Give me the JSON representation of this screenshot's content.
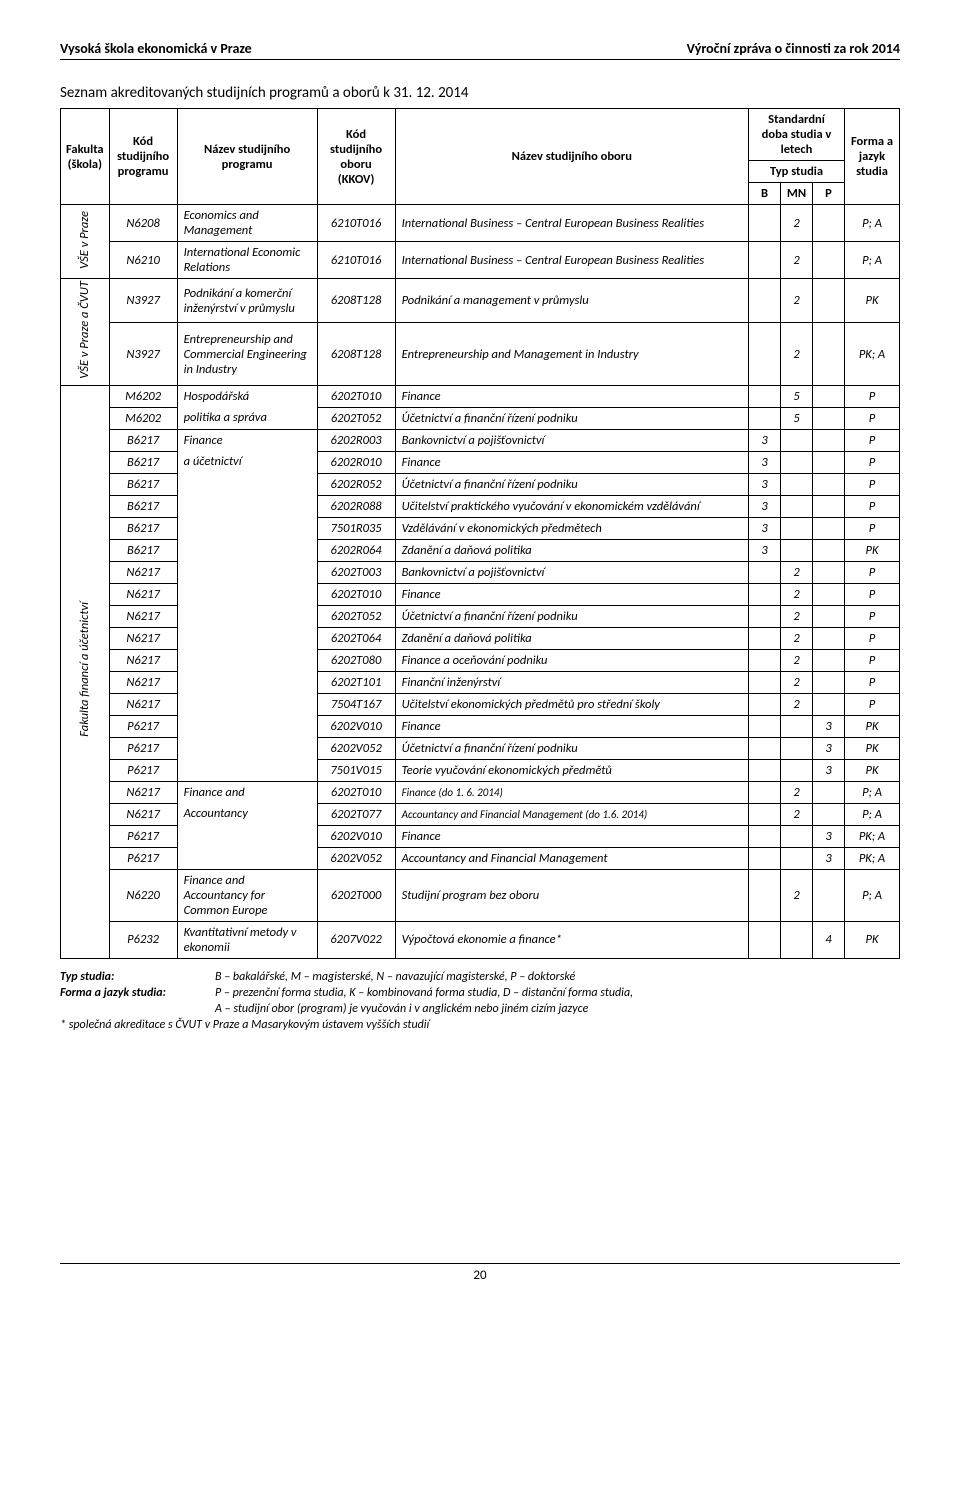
{
  "header": {
    "left": "Vysoká škola ekonomická v Praze",
    "right": "Výroční zpráva o činnosti za rok 2014"
  },
  "title": "Seznam akreditovaných studijních programů a oborů k 31. 12. 2014",
  "columns": {
    "fakulta": "Fakulta (škola)",
    "kod_prog": "Kód studijního programu",
    "nazev_prog": "Název studijního programu",
    "kkov": "Kód studijního oboru (KKOV)",
    "nazev_obor": "Název studijního oboru",
    "std_doba": "Standardní doba studia v letech",
    "typ": "Typ studia",
    "b": "B",
    "mn": "MN",
    "p": "P",
    "forma": "Forma a jazyk studia"
  },
  "groups": {
    "g1": "VŠE v Praze",
    "g2": "VŠE v Praze a ČVUT",
    "g3": "Fakulta financí a účetnictví"
  },
  "rows": {
    "r1": {
      "code": "N6208",
      "prog": "Economics and Management",
      "kkov": "6210T016",
      "name": "International Business – Central European Business Realities",
      "b": "",
      "mn": "2",
      "p": "",
      "form": "P; A"
    },
    "r2": {
      "code": "N6210",
      "prog": "International Economic Relations",
      "kkov": "6210T016",
      "name": "International Business – Central European Business Realities",
      "b": "",
      "mn": "2",
      "p": "",
      "form": "P; A"
    },
    "r3": {
      "code": "N3927",
      "prog": "Podnikání a komerční inženýrství v průmyslu",
      "kkov": "6208T128",
      "name": "Podnikání a management v průmyslu",
      "b": "",
      "mn": "2",
      "p": "",
      "form": "PK"
    },
    "r4": {
      "code": "N3927",
      "prog": "Entrepreneurship and Commercial Engineering in Industry",
      "kkov": "6208T128",
      "name": "Entrepreneurship and Management in Industry",
      "b": "",
      "mn": "2",
      "p": "",
      "form": "PK; A"
    },
    "r5": {
      "code": "M6202",
      "prog": "Hospodářská",
      "kkov": "6202T010",
      "name": "Finance",
      "b": "",
      "mn": "5",
      "p": "",
      "form": "P"
    },
    "r6": {
      "code": "M6202",
      "prog": "politika a správa",
      "kkov": "6202T052",
      "name": "Účetnictví a finanční řízení podniku",
      "b": "",
      "mn": "5",
      "p": "",
      "form": "P"
    },
    "r7": {
      "code": "B6217",
      "prog": "Finance",
      "kkov": "6202R003",
      "name": "Bankovnictví a pojišťovnictví",
      "b": "3",
      "mn": "",
      "p": "",
      "form": "P"
    },
    "r8": {
      "code": "B6217",
      "prog": "a účetnictví",
      "kkov": "6202R010",
      "name": "Finance",
      "b": "3",
      "mn": "",
      "p": "",
      "form": "P"
    },
    "r9": {
      "code": "B6217",
      "kkov": "6202R052",
      "name": "Účetnictví a finanční řízení podniku",
      "b": "3",
      "mn": "",
      "p": "",
      "form": "P"
    },
    "r10": {
      "code": "B6217",
      "kkov": "6202R088",
      "name": "Učitelství praktického vyučování v ekonomickém vzdělávání",
      "b": "3",
      "mn": "",
      "p": "",
      "form": "P"
    },
    "r11": {
      "code": "B6217",
      "kkov": "7501R035",
      "name": "Vzdělávání v ekonomických předmětech",
      "b": "3",
      "mn": "",
      "p": "",
      "form": "P"
    },
    "r12": {
      "code": "B6217",
      "kkov": "6202R064",
      "name": "Zdanění a daňová politika",
      "b": "3",
      "mn": "",
      "p": "",
      "form": "PK"
    },
    "r13": {
      "code": "N6217",
      "kkov": "6202T003",
      "name": "Bankovnictví a pojišťovnictví",
      "b": "",
      "mn": "2",
      "p": "",
      "form": "P"
    },
    "r14": {
      "code": "N6217",
      "kkov": "6202T010",
      "name": "Finance",
      "b": "",
      "mn": "2",
      "p": "",
      "form": "P"
    },
    "r15": {
      "code": "N6217",
      "kkov": "6202T052",
      "name": "Účetnictví a finanční řízení podniku",
      "b": "",
      "mn": "2",
      "p": "",
      "form": "P"
    },
    "r16": {
      "code": "N6217",
      "kkov": "6202T064",
      "name": "Zdanění a daňová politika",
      "b": "",
      "mn": "2",
      "p": "",
      "form": "P"
    },
    "r17": {
      "code": "N6217",
      "kkov": "6202T080",
      "name": "Finance a oceňování podniku",
      "b": "",
      "mn": "2",
      "p": "",
      "form": "P"
    },
    "r18": {
      "code": "N6217",
      "kkov": "6202T101",
      "name": "Finanční inženýrství",
      "b": "",
      "mn": "2",
      "p": "",
      "form": "P"
    },
    "r19": {
      "code": "N6217",
      "kkov": "7504T167",
      "name": "Učitelství ekonomických předmětů pro střední školy",
      "b": "",
      "mn": "2",
      "p": "",
      "form": "P"
    },
    "r20": {
      "code": "P6217",
      "kkov": "6202V010",
      "name": "Finance",
      "b": "",
      "mn": "",
      "p": "3",
      "form": "PK"
    },
    "r21": {
      "code": "P6217",
      "kkov": "6202V052",
      "name": "Účetnictví a finanční řízení podniku",
      "b": "",
      "mn": "",
      "p": "3",
      "form": "PK"
    },
    "r22": {
      "code": "P6217",
      "kkov": "7501V015",
      "name": "Teorie vyučování ekonomických předmětů",
      "b": "",
      "mn": "",
      "p": "3",
      "form": "PK"
    },
    "r23": {
      "code": "N6217",
      "prog": "Finance and",
      "kkov": "6202T010",
      "name": "Finance (do 1. 6. 2014)",
      "b": "",
      "mn": "2",
      "p": "",
      "form": "P; A"
    },
    "r24": {
      "code": "N6217",
      "prog": "Accountancy",
      "kkov": "6202T077",
      "name": "Accountancy and Financial Management (do 1.6. 2014)",
      "b": "",
      "mn": "2",
      "p": "",
      "form": "P; A"
    },
    "r25": {
      "code": "P6217",
      "kkov": "6202V010",
      "name": "Finance",
      "b": "",
      "mn": "",
      "p": "3",
      "form": "PK; A"
    },
    "r26": {
      "code": "P6217",
      "kkov": "6202V052",
      "name": "Accountancy and Financial Management",
      "b": "",
      "mn": "",
      "p": "3",
      "form": "PK; A"
    },
    "r27": {
      "code": "N6220",
      "prog": "Finance and Accountancy for Common Europe",
      "kkov": "6202T000",
      "name": "Studijní program bez oboru",
      "b": "",
      "mn": "2",
      "p": "",
      "form": "P; A"
    },
    "r28": {
      "code": "P6232",
      "prog": "Kvantitativní metody v ekonomii",
      "kkov": "6207V022",
      "name": "Výpočtová ekonomie a finance*",
      "b": "",
      "mn": "",
      "p": "4",
      "form": "PK"
    }
  },
  "legend": {
    "typ_label": "Typ studia:",
    "typ_text": "B – bakalářské, M – magisterské, N – navazující magisterské, P – doktorské",
    "forma_label": "Forma a jazyk studia:",
    "forma_text1": "P – prezenční forma studia, K – kombinovaná forma studia, D – distanční forma studia,",
    "forma_text2": "A – studijní obor (program) je vyučován i v anglickém nebo jiném cizím jazyce",
    "note": "* společná akreditace s ČVUT v Praze a Masarykovým ústavem vyšších studií"
  },
  "page_number": "20"
}
